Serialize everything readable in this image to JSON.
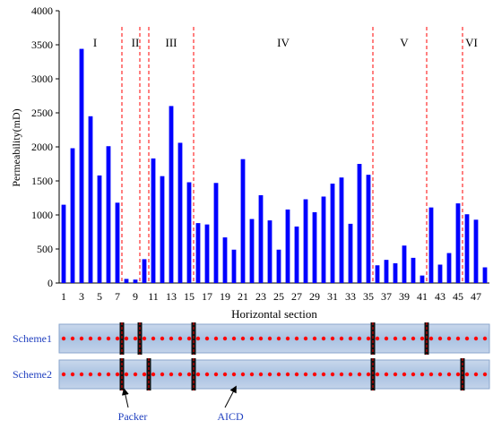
{
  "chart_data": {
    "type": "bar",
    "ylabel": "Permeability(mD)",
    "xlabel": "Horizontal section",
    "ylim": [
      0,
      4000
    ],
    "yticks": [
      0,
      500,
      1000,
      1500,
      2000,
      2500,
      3000,
      3500,
      4000
    ],
    "xtick_labels": [
      "1",
      "3",
      "5",
      "7",
      "9",
      "11",
      "13",
      "15",
      "17",
      "19",
      "21",
      "23",
      "25",
      "27",
      "29",
      "31",
      "33",
      "35",
      "37",
      "39",
      "41",
      "43",
      "45",
      "47"
    ],
    "bar_color": "#0000ff",
    "x": [
      1,
      2,
      3,
      4,
      5,
      6,
      7,
      8,
      9,
      10,
      11,
      12,
      13,
      14,
      15,
      16,
      17,
      18,
      19,
      20,
      21,
      22,
      23,
      24,
      25,
      26,
      27,
      28,
      29,
      30,
      31,
      32,
      33,
      34,
      35,
      36,
      37,
      38,
      39,
      40,
      41,
      42,
      43,
      44,
      45,
      46,
      47,
      48
    ],
    "values": [
      1150,
      1980,
      3440,
      2450,
      1580,
      2010,
      1180,
      60,
      50,
      350,
      1830,
      1570,
      2600,
      2060,
      1480,
      880,
      860,
      1470,
      670,
      490,
      1820,
      940,
      1290,
      920,
      490,
      1080,
      830,
      1230,
      1040,
      1270,
      1460,
      1550,
      870,
      1750,
      1590,
      260,
      340,
      290,
      550,
      370,
      110,
      1110,
      270,
      440,
      1170,
      1010,
      930,
      230
    ],
    "zone_boundaries": [
      7.5,
      9.5,
      10.5,
      15.5,
      35.5,
      41.5,
      45.5
    ],
    "zone_boundary_color": "#ff0000",
    "zones": [
      {
        "label": "I",
        "center": 4.5
      },
      {
        "label": "II",
        "center": 9.0
      },
      {
        "label": "III",
        "center": 13.0
      },
      {
        "label": "IV",
        "center": 25.5
      },
      {
        "label": "V",
        "center": 39.0
      },
      {
        "label": "VI",
        "center": 46.5
      }
    ]
  },
  "schemes": [
    {
      "label": "Scheme1",
      "packers": [
        7.5,
        9.5,
        15.5,
        35.5,
        41.5
      ]
    },
    {
      "label": "Scheme2",
      "packers": [
        7.5,
        10.5,
        15.5,
        35.5,
        45.5
      ]
    }
  ],
  "scheme_label_color": "#1f3fbf",
  "aicd_color": "#ff0000",
  "annotations": {
    "packer": "Packer",
    "aicd": "AICD"
  }
}
